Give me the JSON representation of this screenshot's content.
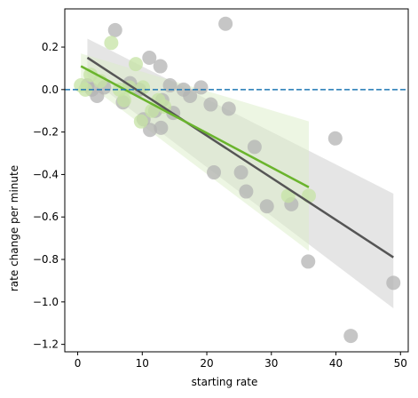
{
  "chart_data": {
    "type": "scatter",
    "xlabel": "starting rate",
    "ylabel": "rate change per minute",
    "xlim": [
      -2,
      51.2
    ],
    "ylim": [
      -1.235,
      0.38
    ],
    "xticks": [
      0,
      10,
      20,
      30,
      40,
      50
    ],
    "xtick_labels": [
      "0",
      "10",
      "20",
      "30",
      "40",
      "50"
    ],
    "yticks": [
      0.2,
      0.0,
      -0.2,
      -0.4,
      -0.6,
      -0.8,
      -1.0,
      -1.2
    ],
    "ytick_labels": [
      "0.2",
      "0.0",
      "−0.2",
      "−0.4",
      "−0.6",
      "−0.8",
      "−1.0",
      "−1.2"
    ],
    "reference_line": {
      "y": 0.0,
      "style": "dashed",
      "color": "#1f77b4"
    },
    "grid": false,
    "series": [
      {
        "color": "#b3b3b3",
        "line_color": "#555555",
        "band_color": "#cccccc",
        "points": [
          [
            1.5,
            0.02
          ],
          [
            2.2,
            0.0
          ],
          [
            3.0,
            -0.03
          ],
          [
            4.1,
            0.01
          ],
          [
            5.8,
            0.28
          ],
          [
            7.0,
            -0.06
          ],
          [
            8.1,
            0.03
          ],
          [
            9.5,
            0.0
          ],
          [
            10.2,
            -0.14
          ],
          [
            11.1,
            0.15
          ],
          [
            11.2,
            -0.19
          ],
          [
            12.0,
            -0.1
          ],
          [
            12.8,
            0.11
          ],
          [
            12.9,
            -0.18
          ],
          [
            13.1,
            -0.05
          ],
          [
            14.3,
            0.02
          ],
          [
            14.8,
            -0.11
          ],
          [
            16.4,
            0.0
          ],
          [
            17.4,
            -0.03
          ],
          [
            19.1,
            0.01
          ],
          [
            20.6,
            -0.07
          ],
          [
            21.1,
            -0.39
          ],
          [
            22.9,
            0.31
          ],
          [
            23.4,
            -0.09
          ],
          [
            25.3,
            -0.39
          ],
          [
            26.1,
            -0.48
          ],
          [
            27.4,
            -0.27
          ],
          [
            29.3,
            -0.55
          ],
          [
            33.1,
            -0.54
          ],
          [
            35.7,
            -0.81
          ],
          [
            39.9,
            -0.23
          ],
          [
            42.3,
            -1.16
          ],
          [
            48.9,
            -0.91
          ]
        ],
        "fit": {
          "x": [
            1.5,
            48.9
          ],
          "y": [
            0.15,
            -0.79
          ]
        },
        "ci_band": {
          "x": [
            1.5,
            48.9
          ],
          "upper": [
            0.24,
            -0.49
          ],
          "lower": [
            0.06,
            -1.03
          ]
        }
      },
      {
        "color": "#c5e3a4",
        "line_color": "#6ab42d",
        "band_color": "#dcedc8",
        "points": [
          [
            0.5,
            0.02
          ],
          [
            1.2,
            0.0
          ],
          [
            2.0,
            0.07
          ],
          [
            3.5,
            0.04
          ],
          [
            5.2,
            0.22
          ],
          [
            6.5,
            0.0
          ],
          [
            7.2,
            -0.05
          ],
          [
            8.0,
            0.01
          ],
          [
            9.0,
            0.12
          ],
          [
            9.8,
            -0.15
          ],
          [
            10.1,
            0.01
          ],
          [
            11.5,
            -0.1
          ],
          [
            12.5,
            -0.05
          ],
          [
            13.4,
            -0.08
          ],
          [
            32.6,
            -0.5
          ],
          [
            35.8,
            -0.5
          ]
        ],
        "fit": {
          "x": [
            0.5,
            35.8
          ],
          "y": [
            0.11,
            -0.46
          ]
        },
        "ci_band": {
          "x": [
            0.5,
            35.8
          ],
          "upper": [
            0.17,
            -0.15
          ],
          "lower": [
            0.05,
            -0.76
          ]
        }
      }
    ]
  }
}
